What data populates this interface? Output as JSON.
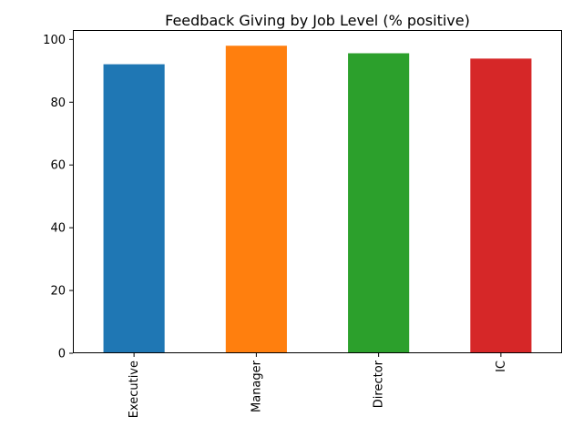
{
  "chart_data": {
    "type": "bar",
    "title": "Feedback Giving by Job Level (% positive)",
    "xlabel": "",
    "ylabel": "",
    "categories": [
      "Executive",
      "Manager",
      "Director",
      "IC"
    ],
    "values": [
      92.1,
      98.0,
      95.6,
      93.9
    ],
    "colors": [
      "#1f77b4",
      "#ff7f0e",
      "#2ca02c",
      "#d62728"
    ],
    "ylim": [
      0,
      103
    ],
    "yticks": [
      0,
      20,
      40,
      60,
      80,
      100
    ],
    "ytick_labels": [
      "0",
      "20",
      "40",
      "60",
      "80",
      "100"
    ],
    "grid": false,
    "legend": "none",
    "x_tick_rotation": "vertical"
  }
}
